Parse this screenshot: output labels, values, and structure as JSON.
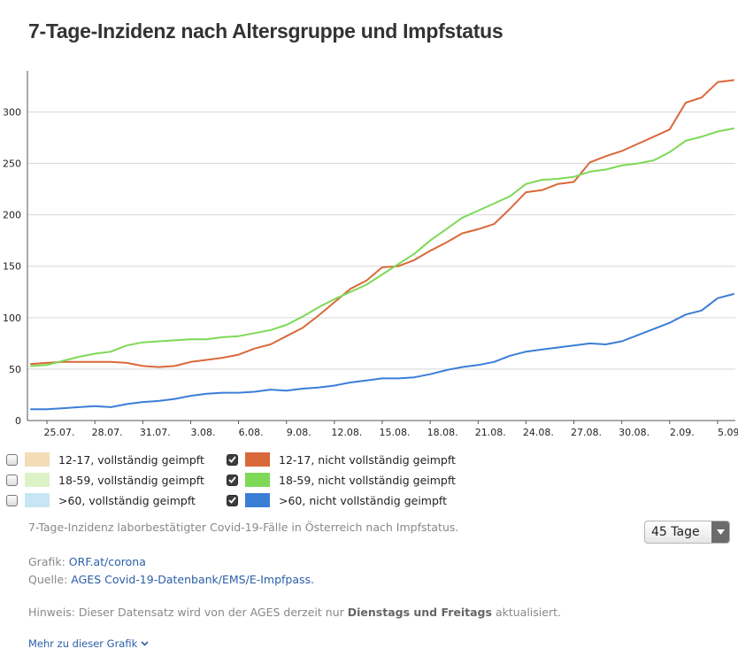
{
  "title": "7-Tage-Inzidenz nach Altersgruppe und Impfstatus",
  "chart_data": {
    "type": "line",
    "title": "7-Tage-Inzidenz nach Altersgruppe und Impfstatus",
    "x": [
      "24.07.",
      "25.07.",
      "26.07.",
      "27.07.",
      "28.07.",
      "29.07.",
      "30.07.",
      "31.07.",
      "01.08.",
      "02.08.",
      "03.08.",
      "04.08.",
      "05.08.",
      "06.08.",
      "07.08.",
      "08.08.",
      "09.08.",
      "10.08.",
      "11.08.",
      "12.08.",
      "13.08.",
      "14.08.",
      "15.08.",
      "16.08.",
      "17.08.",
      "18.08.",
      "19.08.",
      "20.08.",
      "21.08.",
      "22.08.",
      "23.08.",
      "24.08.",
      "25.08.",
      "26.08.",
      "27.08.",
      "28.08.",
      "29.08.",
      "30.08.",
      "31.08.",
      "01.09.",
      "02.09.",
      "03.09.",
      "04.09.",
      "05.09.",
      "06.09."
    ],
    "x_tick_labels": [
      "25.07.",
      "28.07.",
      "31.07.",
      "3.08.",
      "6.08.",
      "9.08.",
      "12.08.",
      "15.08.",
      "18.08.",
      "21.08.",
      "24.08.",
      "27.08.",
      "30.08.",
      "2.09.",
      "5.09."
    ],
    "x_tick_index": [
      1,
      4,
      7,
      10,
      13,
      16,
      19,
      22,
      25,
      28,
      31,
      34,
      37,
      40,
      43
    ],
    "ylim": [
      0,
      340
    ],
    "y_ticks": [
      0,
      50,
      100,
      150,
      200,
      250,
      300
    ],
    "grid": true,
    "series": [
      {
        "name": "12-17, nicht vollständig geimpft",
        "color": "#d9693a",
        "values": [
          55,
          56,
          57,
          57,
          57,
          57,
          56,
          53,
          52,
          53,
          57,
          59,
          61,
          64,
          70,
          74,
          82,
          90,
          102,
          115,
          128,
          136,
          149,
          150,
          156,
          165,
          173,
          182,
          186,
          191,
          206,
          222,
          224,
          230,
          232,
          251,
          257,
          262,
          269,
          276,
          283,
          309,
          314,
          329,
          331
        ]
      },
      {
        "name": "18-59, nicht vollständig geimpft",
        "color": "#7ed957",
        "values": [
          53,
          54,
          58,
          62,
          65,
          67,
          73,
          76,
          77,
          78,
          79,
          79,
          81,
          82,
          85,
          88,
          93,
          101,
          110,
          118,
          125,
          132,
          142,
          152,
          162,
          175,
          186,
          197,
          204,
          211,
          218,
          230,
          234,
          235,
          237,
          242,
          244,
          248,
          250,
          253,
          261,
          272,
          276,
          281,
          284
        ]
      },
      {
        "name": ">60, nicht vollständig geimpft",
        "color": "#3b7ed6",
        "values": [
          11,
          11,
          12,
          13,
          14,
          13,
          16,
          18,
          19,
          21,
          24,
          26,
          27,
          27,
          28,
          30,
          29,
          31,
          32,
          34,
          37,
          39,
          41,
          41,
          42,
          45,
          49,
          52,
          54,
          57,
          63,
          67,
          69,
          71,
          73,
          75,
          74,
          77,
          83,
          89,
          95,
          103,
          107,
          119,
          123
        ]
      }
    ]
  },
  "legend": {
    "left": [
      {
        "label": "12-17, vollständig geimpft",
        "color": "#f3ddb8",
        "checked": false
      },
      {
        "label": "18-59, vollständig geimpft",
        "color": "#dcf3c8",
        "checked": false
      },
      {
        "label": ">60, vollständig geimpft",
        "color": "#c6e6f5",
        "checked": false
      }
    ],
    "right": [
      {
        "label": "12-17, nicht vollständig geimpft",
        "color": "#d9693a",
        "checked": true
      },
      {
        "label": "18-59, nicht vollständig geimpft",
        "color": "#7ed957",
        "checked": true
      },
      {
        "label": ">60, nicht vollständig geimpft",
        "color": "#3b7ed6",
        "checked": true
      }
    ]
  },
  "description": "7-Tage-Inzidenz laborbestätigter Covid-19-Fälle in Österreich nach Impfstatus.",
  "range_select": {
    "value": "45 Tage"
  },
  "source": {
    "grafik_label": "Grafik:",
    "grafik_link": "ORF.at/corona",
    "quelle_label": "Quelle:",
    "quelle_link": "AGES Covid-19-Datenbank/EMS/E-Impfpass."
  },
  "hint": {
    "prefix": "Hinweis: Dieser Datensatz wird von der AGES derzeit nur",
    "bold": "Dienstags und Freitags",
    "suffix": "aktualisiert."
  },
  "more_link": "Mehr zu dieser Grafik"
}
